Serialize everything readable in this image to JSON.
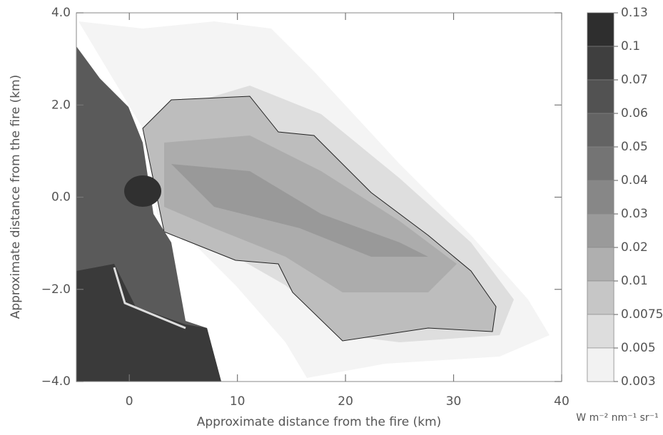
{
  "chart_data": {
    "type": "image",
    "xlabel": "Approximate distance from the fire (km)",
    "ylabel": "Approximate distance from the fire (km)",
    "xlim": [
      -4.9,
      40
    ],
    "ylim": [
      -4,
      4
    ],
    "xticks": [
      0,
      10,
      20,
      30,
      40
    ],
    "yticks": [
      {
        "value": -4,
        "label": "−4.0"
      },
      {
        "value": -2,
        "label": "−2.0"
      },
      {
        "value": 0,
        "label": "0.0"
      },
      {
        "value": 2,
        "label": "2.0"
      },
      {
        "value": 4,
        "label": "4.0"
      }
    ],
    "colorbar": {
      "label": "W m⁻² nm⁻¹ sr⁻¹",
      "levels": [
        0.13,
        0.1,
        0.07,
        0.06,
        0.05,
        0.04,
        0.03,
        0.02,
        0.01,
        0.0075,
        0.005,
        0.003
      ],
      "colors": [
        "#2e2e2e",
        "#3f3f3f",
        "#525252",
        "#636363",
        "#747474",
        "#878787",
        "#9a9a9a",
        "#afafaf",
        "#c6c6c6",
        "#dddddd",
        "#f2f2f2"
      ]
    }
  }
}
